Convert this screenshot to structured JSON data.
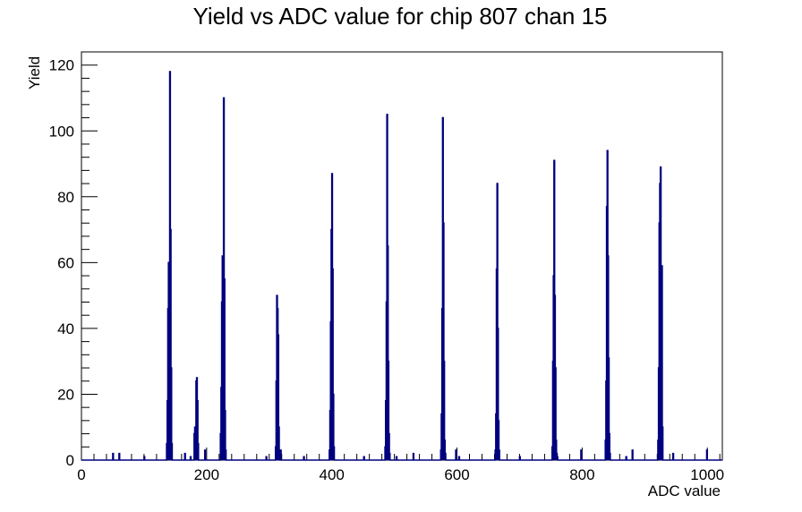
{
  "chart_data": {
    "type": "histogram",
    "title": "Yield vs ADC value for chip 807 chan 15",
    "xlabel": "ADC value",
    "ylabel": "Yield",
    "xlim": [
      0,
      1024
    ],
    "ylim": [
      0,
      124
    ],
    "xticks": [
      0,
      200,
      400,
      600,
      800,
      1000
    ],
    "yticks": [
      0,
      20,
      40,
      60,
      80,
      100,
      120
    ],
    "line_color": "#00007f",
    "grid": false,
    "bins": [
      [
        50,
        2
      ],
      [
        60,
        2
      ],
      [
        100,
        1
      ],
      [
        136,
        5
      ],
      [
        137,
        18
      ],
      [
        138,
        46
      ],
      [
        139,
        60
      ],
      [
        140,
        42
      ],
      [
        141,
        118
      ],
      [
        142,
        70
      ],
      [
        143,
        28
      ],
      [
        144,
        5
      ],
      [
        165,
        2
      ],
      [
        174,
        1
      ],
      [
        180,
        8
      ],
      [
        181,
        10
      ],
      [
        182,
        6
      ],
      [
        183,
        24
      ],
      [
        184,
        25
      ],
      [
        185,
        18
      ],
      [
        186,
        5
      ],
      [
        197,
        3
      ],
      [
        222,
        8
      ],
      [
        223,
        22
      ],
      [
        224,
        48
      ],
      [
        225,
        62
      ],
      [
        226,
        30
      ],
      [
        227,
        110
      ],
      [
        228,
        55
      ],
      [
        229,
        15
      ],
      [
        230,
        3
      ],
      [
        295,
        1
      ],
      [
        310,
        4
      ],
      [
        311,
        24
      ],
      [
        312,
        50
      ],
      [
        313,
        46
      ],
      [
        314,
        38
      ],
      [
        315,
        10
      ],
      [
        316,
        2
      ],
      [
        318,
        3
      ],
      [
        355,
        1
      ],
      [
        396,
        3
      ],
      [
        397,
        15
      ],
      [
        398,
        42
      ],
      [
        399,
        70
      ],
      [
        400,
        87
      ],
      [
        401,
        58
      ],
      [
        402,
        20
      ],
      [
        403,
        4
      ],
      [
        451,
        1
      ],
      [
        485,
        4
      ],
      [
        486,
        18
      ],
      [
        487,
        48
      ],
      [
        488,
        105
      ],
      [
        489,
        65
      ],
      [
        490,
        30
      ],
      [
        491,
        8
      ],
      [
        492,
        2
      ],
      [
        503,
        1
      ],
      [
        530,
        2
      ],
      [
        574,
        3
      ],
      [
        575,
        14
      ],
      [
        576,
        46
      ],
      [
        577,
        104
      ],
      [
        578,
        72
      ],
      [
        579,
        30
      ],
      [
        580,
        6
      ],
      [
        581,
        2
      ],
      [
        598,
        3
      ],
      [
        603,
        1
      ],
      [
        661,
        3
      ],
      [
        662,
        14
      ],
      [
        663,
        58
      ],
      [
        664,
        84
      ],
      [
        665,
        40
      ],
      [
        666,
        12
      ],
      [
        667,
        3
      ],
      [
        700,
        1
      ],
      [
        752,
        4
      ],
      [
        753,
        30
      ],
      [
        754,
        56
      ],
      [
        755,
        91
      ],
      [
        756,
        50
      ],
      [
        757,
        28
      ],
      [
        758,
        6
      ],
      [
        759,
        2
      ],
      [
        760,
        1
      ],
      [
        798,
        3
      ],
      [
        837,
        6
      ],
      [
        838,
        24
      ],
      [
        839,
        77
      ],
      [
        840,
        94
      ],
      [
        841,
        62
      ],
      [
        842,
        31
      ],
      [
        843,
        8
      ],
      [
        844,
        2
      ],
      [
        870,
        1
      ],
      [
        880,
        3
      ],
      [
        921,
        6
      ],
      [
        922,
        28
      ],
      [
        923,
        72
      ],
      [
        924,
        84
      ],
      [
        925,
        89
      ],
      [
        926,
        40
      ],
      [
        927,
        59
      ],
      [
        928,
        10
      ],
      [
        945,
        2
      ],
      [
        999,
        3
      ]
    ]
  }
}
